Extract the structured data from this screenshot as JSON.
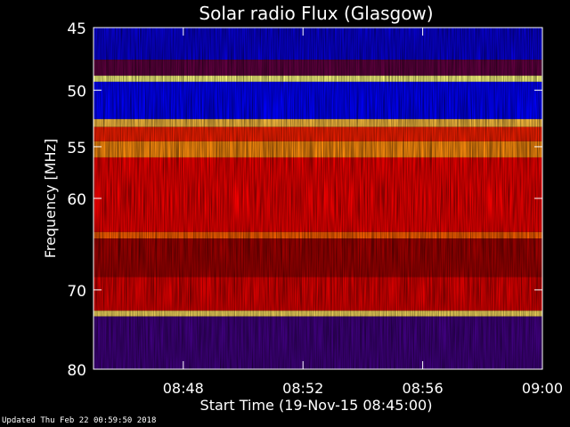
{
  "chart_data": {
    "type": "heatmap",
    "title": "Solar radio Flux (Glasgow)",
    "xlabel": "Start Time (19-Nov-15 08:45:00)",
    "ylabel": "Frequency [MHz]",
    "x_range": [
      "08:45:00",
      "09:00:00"
    ],
    "y_range": [
      45,
      80
    ],
    "y_scale": "log",
    "y_inverted": true,
    "x_ticks": [
      "08:48",
      "08:52",
      "08:56",
      "09:00"
    ],
    "y_ticks": [
      45,
      50,
      55,
      60,
      70,
      80
    ],
    "colormap": [
      "#1a0060",
      "#0000ff",
      "#800000",
      "#ff0000",
      "#ff8000",
      "#ffff80"
    ],
    "bands": [
      {
        "from_mhz": 45.0,
        "to_mhz": 47.5,
        "level": 0.15
      },
      {
        "from_mhz": 47.5,
        "to_mhz": 48.8,
        "level": 0.35
      },
      {
        "from_mhz": 48.8,
        "to_mhz": 49.3,
        "level": 1.0
      },
      {
        "from_mhz": 49.3,
        "to_mhz": 52.5,
        "level": 0.2
      },
      {
        "from_mhz": 52.5,
        "to_mhz": 53.2,
        "level": 0.9
      },
      {
        "from_mhz": 53.2,
        "to_mhz": 54.5,
        "level": 0.65
      },
      {
        "from_mhz": 54.5,
        "to_mhz": 56.0,
        "level": 0.82
      },
      {
        "from_mhz": 56.0,
        "to_mhz": 63.5,
        "level": 0.58
      },
      {
        "from_mhz": 63.5,
        "to_mhz": 64.2,
        "level": 0.75
      },
      {
        "from_mhz": 64.2,
        "to_mhz": 68.5,
        "level": 0.45
      },
      {
        "from_mhz": 68.5,
        "to_mhz": 72.5,
        "level": 0.55
      },
      {
        "from_mhz": 72.5,
        "to_mhz": 73.2,
        "level": 0.95
      },
      {
        "from_mhz": 73.2,
        "to_mhz": 80.0,
        "level": 0.3
      }
    ],
    "grid": false
  },
  "footer": {
    "updated": "Updated Thu Feb 22 00:59:50 2018"
  }
}
